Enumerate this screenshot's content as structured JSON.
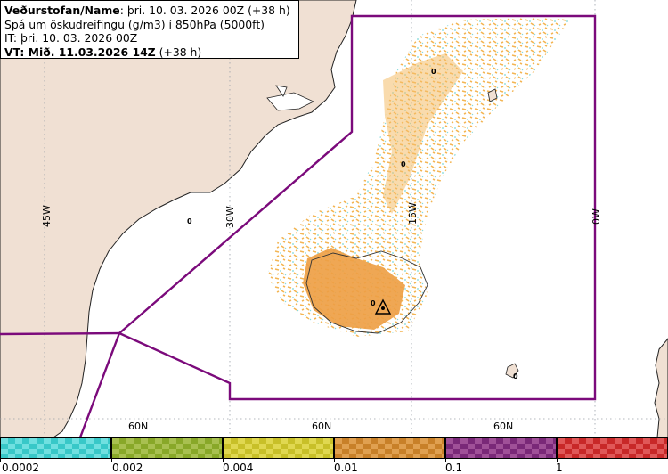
{
  "title": {
    "line1_bold": "Veðurstofan/Name",
    "line1_rest": ": þri. 10. 03. 2026 00Z (+38 h)",
    "line2": "Spá um öskudreifingu (g/m3) í 850hPa (5000ft)",
    "line3": "IT: þri. 10. 03. 2026 00Z",
    "line4_bold": "VT: Mið. 11.03.2026 14Z",
    "line4_rest": " (+38 h)"
  },
  "map": {
    "longitude_labels": [
      "45W",
      "30W",
      "15W",
      "0W"
    ],
    "latitude_labels": [
      "60N",
      "60N",
      "60N"
    ],
    "point_labels": [
      "0",
      "0",
      "0",
      "0",
      "0"
    ],
    "colors": {
      "land": "#f0e0d3",
      "sea": "#ffffff",
      "boundary": "#7b0a7b",
      "grid": "#9aa0a8"
    }
  },
  "legend": {
    "labels": [
      "0.0002",
      "0.002",
      "0.004",
      "0.01",
      "0.1",
      "1"
    ],
    "colors": [
      "#38c8c8",
      "#88a828",
      "#c8c028",
      "#c88028",
      "#7a2878",
      "#c82828"
    ],
    "check_colors": [
      "#70e0e0",
      "#a8c050",
      "#e0d850",
      "#e0a050",
      "#a05098",
      "#e05858"
    ]
  }
}
